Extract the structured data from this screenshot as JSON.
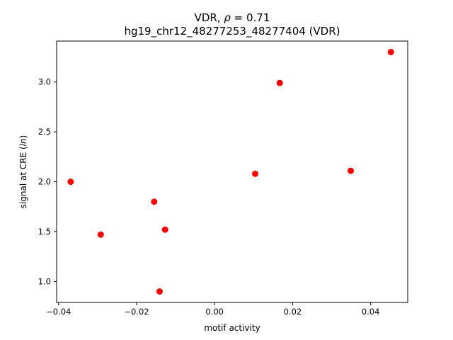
{
  "chart_data": {
    "type": "scatter",
    "title_line1_prefix": "VDR, ",
    "title_line1_rho": "ρ",
    "title_line1_suffix": " = 0.71",
    "title_line2": "hg19_chr12_48277253_48277404 (VDR)",
    "xlabel": "motif activity",
    "ylabel_prefix": "signal at CRE (",
    "ylabel_italic": "ln",
    "ylabel_suffix": ")",
    "xlim": [
      -0.0405,
      0.0495
    ],
    "ylim": [
      0.79,
      3.41
    ],
    "xticks": [
      -0.04,
      -0.02,
      0.0,
      0.02,
      0.04
    ],
    "xtick_labels": [
      "−0.04",
      "−0.02",
      "0.00",
      "0.02",
      "0.04"
    ],
    "yticks": [
      1.0,
      1.5,
      2.0,
      2.5,
      3.0
    ],
    "ytick_labels": [
      "1.0",
      "1.5",
      "2.0",
      "2.5",
      "3.0"
    ],
    "marker_color": "#ff0000",
    "points": [
      {
        "x": -0.0369,
        "y": 2.0
      },
      {
        "x": -0.0292,
        "y": 1.47
      },
      {
        "x": -0.0155,
        "y": 1.8
      },
      {
        "x": -0.0141,
        "y": 0.9
      },
      {
        "x": -0.0127,
        "y": 1.52
      },
      {
        "x": 0.0104,
        "y": 2.08
      },
      {
        "x": 0.0167,
        "y": 2.99
      },
      {
        "x": 0.0349,
        "y": 2.11
      },
      {
        "x": 0.0452,
        "y": 3.3
      }
    ]
  }
}
